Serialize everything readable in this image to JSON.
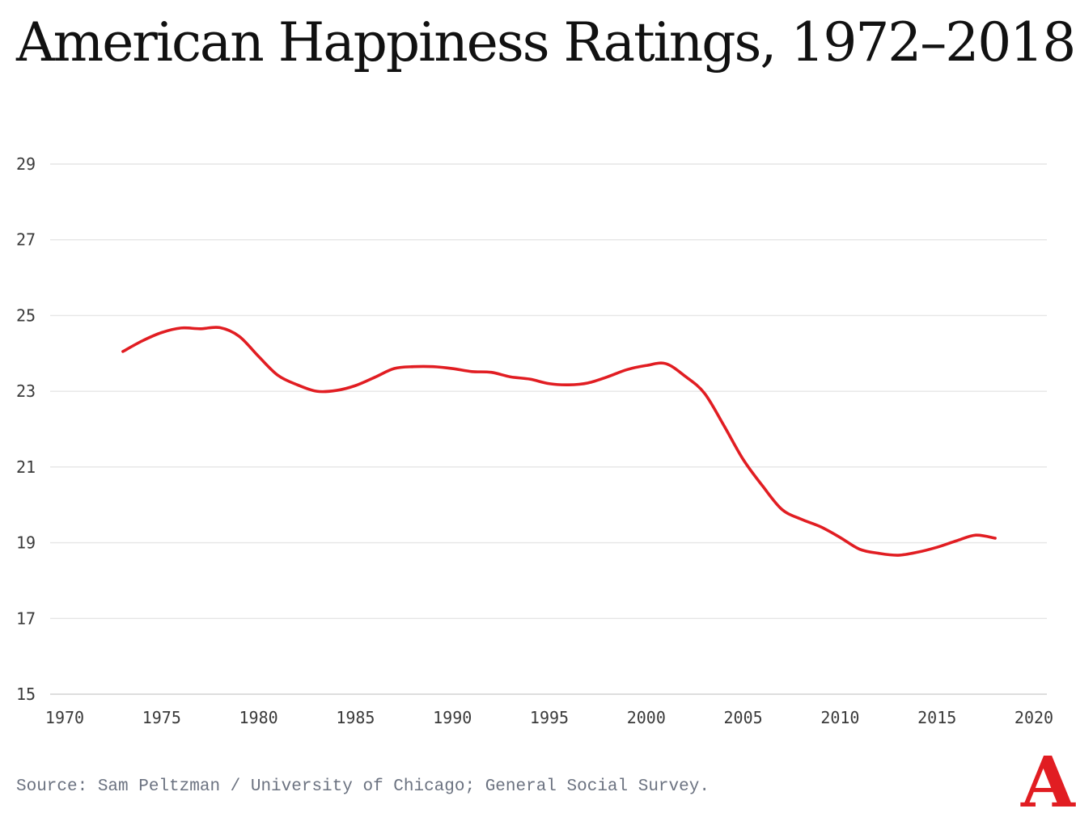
{
  "chart_data": {
    "type": "line",
    "title": "American Happiness Ratings, 1972–2018",
    "xlabel": "",
    "ylabel": "",
    "xlim": [
      1970,
      2020
    ],
    "ylim": [
      15,
      29
    ],
    "x_ticks": [
      1970,
      1975,
      1980,
      1985,
      1990,
      1995,
      2000,
      2005,
      2010,
      2015,
      2020
    ],
    "y_ticks": [
      15,
      17,
      19,
      21,
      23,
      25,
      27,
      29
    ],
    "grid": "horizontal",
    "line_color": "#e11d22",
    "series": [
      {
        "x": [
          1973,
          1974,
          1975,
          1976,
          1977,
          1978,
          1979,
          1980,
          1981,
          1982,
          1983,
          1984,
          1985,
          1986,
          1987,
          1988,
          1989,
          1990,
          1991,
          1992,
          1993,
          1994,
          1995,
          1996,
          1997,
          1998,
          1999,
          2000,
          2001,
          2002,
          2003,
          2004,
          2005,
          2006,
          2007,
          2008,
          2009,
          2010,
          2011,
          2012,
          2013,
          2014,
          2015,
          2016,
          2017,
          2018
        ],
        "values": [
          24.05,
          24.33,
          24.55,
          24.67,
          24.65,
          24.68,
          24.45,
          23.92,
          23.42,
          23.17,
          23.0,
          23.02,
          23.15,
          23.37,
          23.6,
          23.65,
          23.65,
          23.6,
          23.52,
          23.5,
          23.38,
          23.32,
          23.2,
          23.17,
          23.22,
          23.38,
          23.57,
          23.68,
          23.73,
          23.4,
          22.95,
          22.1,
          21.2,
          20.5,
          19.88,
          19.62,
          19.42,
          19.14,
          18.83,
          18.72,
          18.67,
          18.75,
          18.88,
          19.05,
          19.2,
          19.12
        ]
      }
    ]
  },
  "source_text": "Source: Sam Peltzman / University of Chicago; General Social Survey.",
  "logo_text": "A"
}
